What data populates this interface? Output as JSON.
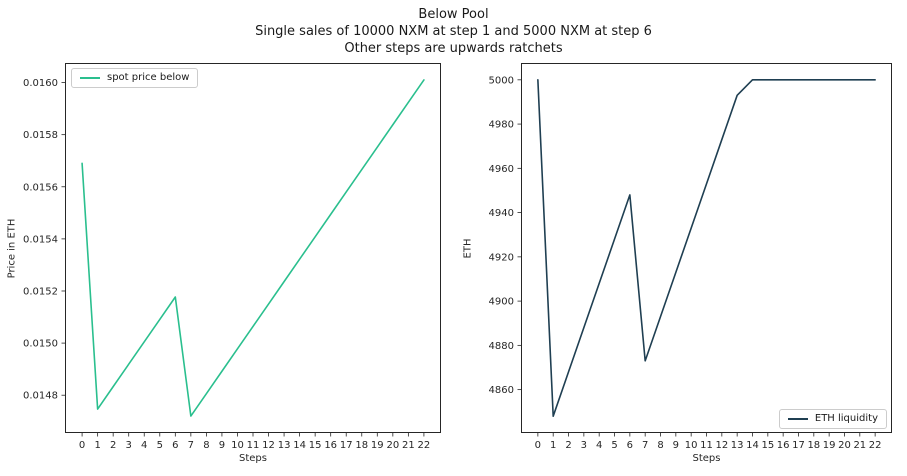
{
  "figure": {
    "title_lines": [
      "Below Pool",
      "Single sales of 10000 NXM at step 1 and 5000 NXM at step 6",
      "Other steps are upwards ratchets"
    ]
  },
  "chart_data": [
    {
      "type": "line",
      "title": "",
      "legend": {
        "label": "spot price below",
        "position": "top-left"
      },
      "xlabel": "Steps",
      "ylabel": "Price in ETH",
      "line_color": "#2abf8e",
      "grid": false,
      "x": [
        "0",
        "1",
        "2",
        "3",
        "4",
        "5",
        "6",
        "7",
        "8",
        "9",
        "10",
        "11",
        "12",
        "13",
        "14",
        "15",
        "16",
        "17",
        "18",
        "19",
        "20",
        "21",
        "22"
      ],
      "values": [
        0.01569,
        0.014747,
        0.014833,
        0.014919,
        0.015005,
        0.015091,
        0.015177,
        0.01472,
        0.014806,
        0.014892,
        0.014978,
        0.015064,
        0.01515,
        0.015236,
        0.015322,
        0.015408,
        0.015494,
        0.01558,
        0.015666,
        0.015752,
        0.015838,
        0.015924,
        0.01601
      ],
      "ylim": [
        0.014655,
        0.016075
      ],
      "yticks": [
        {
          "v": 0.0148,
          "label": "0.0148"
        },
        {
          "v": 0.015,
          "label": "0.0150"
        },
        {
          "v": 0.0152,
          "label": "0.0152"
        },
        {
          "v": 0.0154,
          "label": "0.0154"
        },
        {
          "v": 0.0156,
          "label": "0.0156"
        },
        {
          "v": 0.0158,
          "label": "0.0158"
        },
        {
          "v": 0.016,
          "label": "0.0160"
        }
      ]
    },
    {
      "type": "line",
      "title": "",
      "legend": {
        "label": "ETH liquidity",
        "position": "bottom-right"
      },
      "xlabel": "Steps",
      "ylabel": "ETH",
      "line_color": "#1f3f52",
      "grid": false,
      "x": [
        "0",
        "1",
        "2",
        "3",
        "4",
        "5",
        "6",
        "7",
        "8",
        "9",
        "10",
        "11",
        "12",
        "13",
        "14",
        "15",
        "16",
        "17",
        "18",
        "19",
        "20",
        "21",
        "22"
      ],
      "values": [
        5000,
        4848,
        4868,
        4888,
        4908,
        4928,
        4948,
        4873,
        4893,
        4913,
        4933,
        4953,
        4973,
        4993,
        5000,
        5000,
        5000,
        5000,
        5000,
        5000,
        5000,
        5000,
        5000
      ],
      "ylim": [
        4840.4,
        5007.6
      ],
      "yticks": [
        {
          "v": 4860,
          "label": "4860"
        },
        {
          "v": 4880,
          "label": "4880"
        },
        {
          "v": 4900,
          "label": "4900"
        },
        {
          "v": 4920,
          "label": "4920"
        },
        {
          "v": 4940,
          "label": "4940"
        },
        {
          "v": 4960,
          "label": "4960"
        },
        {
          "v": 4980,
          "label": "4980"
        },
        {
          "v": 5000,
          "label": "5000"
        }
      ]
    }
  ]
}
